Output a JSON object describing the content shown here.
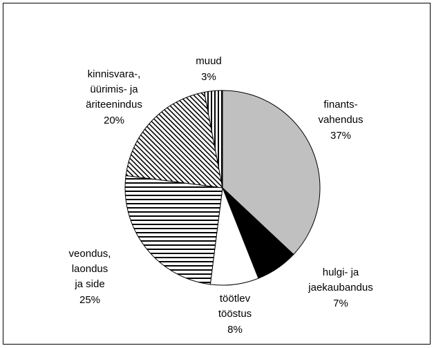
{
  "chart_data": {
    "type": "pie",
    "categories": [
      [
        "finants-",
        "vahendus"
      ],
      [
        "hulgi- ja",
        "jaekaubandus"
      ],
      [
        "töötlev",
        "tööstus"
      ],
      [
        "veondus,",
        "laondus",
        "ja side"
      ],
      [
        "kinnisvara-,",
        "üürimis- ja",
        "äriteenindus"
      ],
      [
        "muud"
      ]
    ],
    "values": [
      37,
      7,
      8,
      25,
      20,
      3
    ],
    "value_labels": [
      "37%",
      "7%",
      "8%",
      "25%",
      "20%",
      "3%"
    ],
    "colors": [
      "#c0c0c0",
      "#000000",
      "#ffffff",
      "#000000",
      "#000000",
      "#000000"
    ],
    "fills": [
      "solid",
      "solid",
      "solid",
      "horizontal",
      "diagonal",
      "vertical"
    ]
  }
}
